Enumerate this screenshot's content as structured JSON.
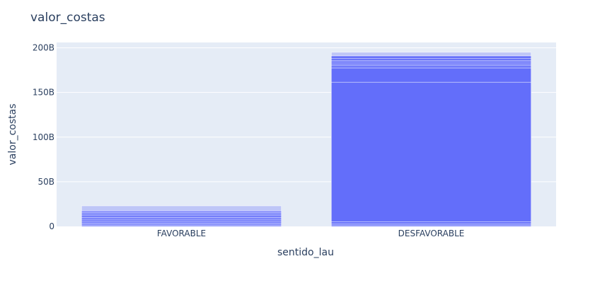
{
  "chart_data": {
    "type": "bar",
    "title": "valor_costas",
    "xlabel": "sentido_lau",
    "ylabel": "valor_costas",
    "categories": [
      "FAVORABLE",
      "DESFAVORABLE"
    ],
    "ylim": [
      0,
      206
    ],
    "yticks": [
      0,
      50,
      100,
      150,
      200
    ],
    "ytick_labels": [
      "0",
      "50B",
      "100B",
      "150B",
      "200B"
    ],
    "value_unit": "billions",
    "grid": true,
    "legend": "none",
    "colors": {
      "bar": "#636efa",
      "plot_bg": "#e5ecf6",
      "grid": "#ffffff",
      "text": "#2a3f5f"
    },
    "stack_segments": [
      {
        "category": "FAVORABLE",
        "values": [
          1.0,
          1.5,
          1.5,
          2.0,
          2.0,
          2.0,
          2.0,
          2.0,
          1.5,
          1.5,
          1.0,
          5.0
        ],
        "opacities": [
          1,
          1,
          1,
          1,
          1,
          1,
          1,
          1,
          1,
          1,
          1,
          0.3
        ]
      },
      {
        "category": "DESFAVORABLE",
        "values": [
          1.5,
          1.5,
          2.0,
          156.5,
          16.0,
          2.5,
          2.0,
          2.0,
          2.0,
          2.0,
          3.0,
          4.0
        ],
        "opacities": [
          1,
          1,
          1,
          1,
          1,
          1,
          1,
          1,
          1,
          1,
          1,
          0.3
        ]
      }
    ],
    "totals": [
      22,
      195
    ]
  }
}
